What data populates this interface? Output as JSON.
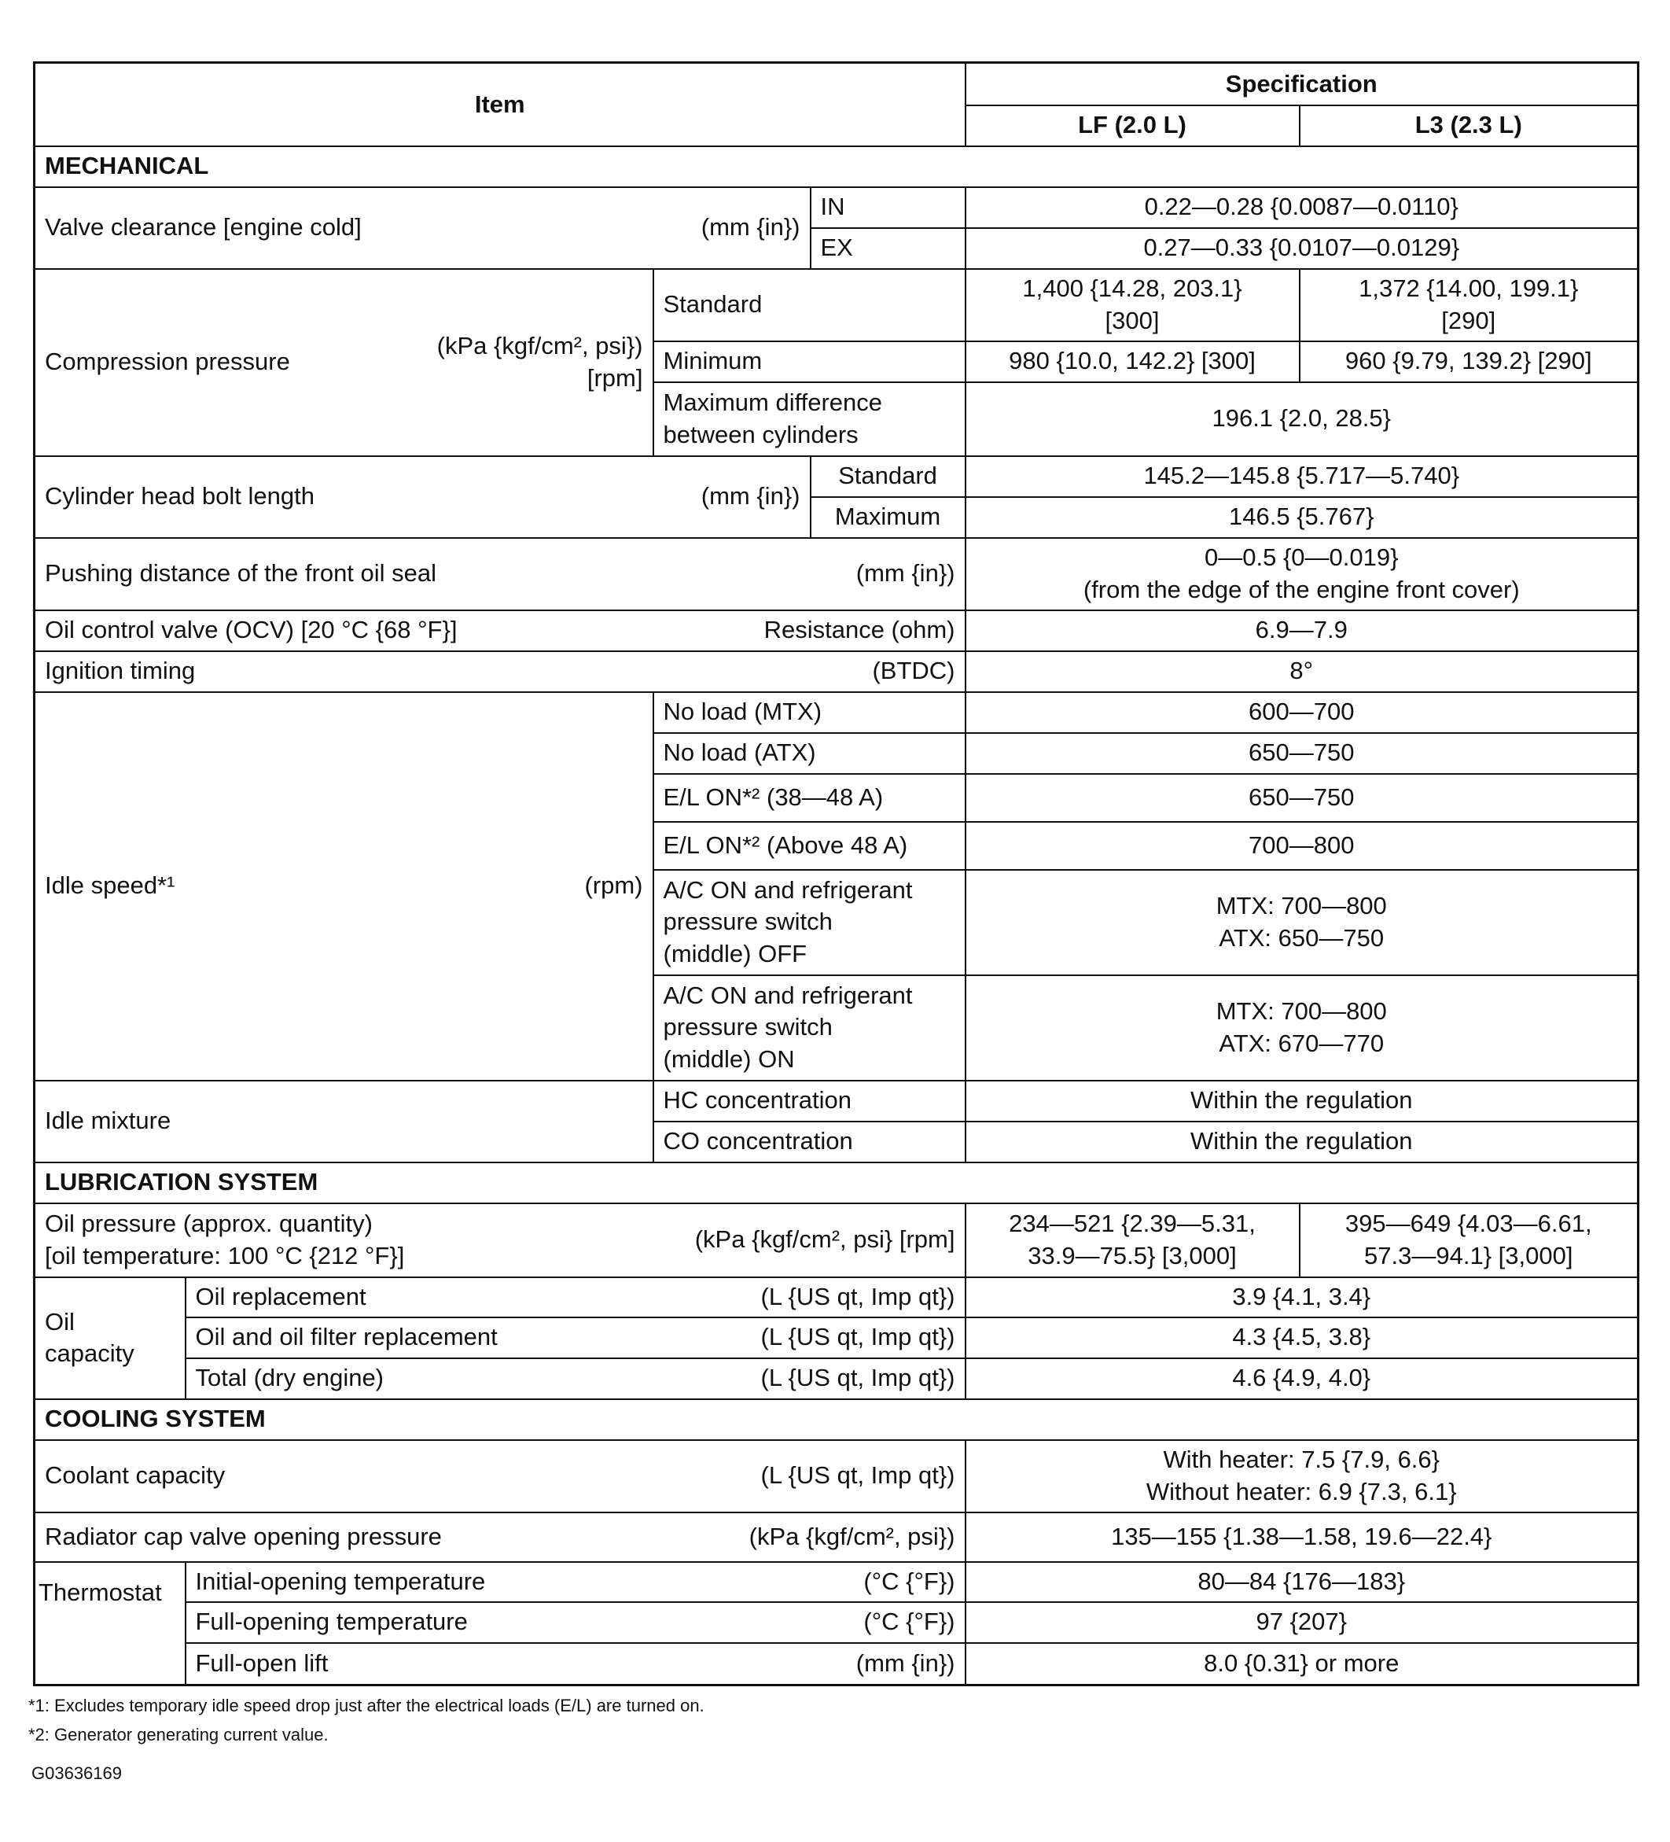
{
  "header": {
    "item": "Item",
    "specification": "Specification",
    "lf": "LF (2.0 L)",
    "l3": "L3 (2.3 L)"
  },
  "sections": {
    "mechanical": "MECHANICAL",
    "lubrication": "LUBRICATION SYSTEM",
    "cooling": "COOLING SYSTEM"
  },
  "mechanical": {
    "valve_clearance": {
      "label": "Valve clearance [engine cold]",
      "unit": "(mm {in})",
      "rows": [
        {
          "sub": "IN",
          "value": "0.22—0.28 {0.0087—0.0110}"
        },
        {
          "sub": "EX",
          "value": "0.27—0.33 {0.0107—0.0129}"
        }
      ]
    },
    "compression": {
      "label": "Compression pressure",
      "unit": "(kPa {kgf/cm², psi})\n[rpm]",
      "standard": {
        "sub": "Standard",
        "lf": "1,400 {14.28, 203.1}\n[300]",
        "l3": "1,372 {14.00, 199.1}\n[290]"
      },
      "minimum": {
        "sub": "Minimum",
        "lf": "980 {10.0, 142.2} [300]",
        "l3": "960 {9.79, 139.2} [290]"
      },
      "max_diff": {
        "sub": "Maximum difference\nbetween cylinders",
        "value": "196.1 {2.0, 28.5}"
      }
    },
    "head_bolt": {
      "label": "Cylinder head bolt length",
      "unit": "(mm {in})",
      "rows": [
        {
          "sub": "Standard",
          "value": "145.2—145.8 {5.717—5.740}"
        },
        {
          "sub": "Maximum",
          "value": "146.5 {5.767}"
        }
      ]
    },
    "oil_seal": {
      "label": "Pushing distance of the front oil seal",
      "unit": "(mm {in})",
      "value": "0—0.5 {0—0.019}\n(from the edge of the engine front cover)"
    },
    "ocv": {
      "label": "Oil control valve (OCV) [20 °C {68 °F}]",
      "unit": "Resistance (ohm)",
      "value": "6.9—7.9"
    },
    "ignition": {
      "label": "Ignition timing",
      "unit": "(BTDC)",
      "value": "8°"
    },
    "idle_speed": {
      "label": "Idle speed*¹",
      "unit": "(rpm)",
      "rows": [
        {
          "sub": "No load (MTX)",
          "value": "600—700"
        },
        {
          "sub": "No load (ATX)",
          "value": "650—750"
        },
        {
          "sub": "E/L ON*² (38—48 A)",
          "value": "650—750"
        },
        {
          "sub": "E/L ON*² (Above 48 A)",
          "value": "700—800"
        },
        {
          "sub": "A/C ON and refrigerant\npressure switch\n(middle) OFF",
          "value": "MTX: 700—800\nATX: 650—750"
        },
        {
          "sub": "A/C ON and refrigerant\npressure switch\n(middle) ON",
          "value": "MTX: 700—800\nATX: 670—770"
        }
      ]
    },
    "idle_mixture": {
      "label": "Idle mixture",
      "rows": [
        {
          "sub": "HC concentration",
          "value": "Within the regulation"
        },
        {
          "sub": "CO concentration",
          "value": "Within the regulation"
        }
      ]
    }
  },
  "lubrication": {
    "oil_pressure": {
      "label": "Oil pressure (approx. quantity)\n [oil temperature: 100 °C {212 °F}]",
      "unit": "(kPa {kgf/cm², psi} [rpm]",
      "lf": "234—521 {2.39—5.31,\n33.9—75.5} [3,000]",
      "l3": "395—649 {4.03—6.61,\n57.3—94.1} [3,000]"
    },
    "oil_capacity": {
      "label": "Oil\ncapacity",
      "rows": [
        {
          "sub": "Oil replacement",
          "unit": "(L {US qt, Imp qt})",
          "value": "3.9 {4.1, 3.4}"
        },
        {
          "sub": "Oil and oil filter replacement",
          "unit": "(L {US qt, Imp qt})",
          "value": "4.3 {4.5, 3.8}"
        },
        {
          "sub": "Total (dry engine)",
          "unit": "(L {US qt, Imp qt})",
          "value": "4.6 {4.9, 4.0}"
        }
      ]
    }
  },
  "cooling": {
    "coolant": {
      "label": "Coolant capacity",
      "unit": "(L {US qt, Imp qt})",
      "value": "With heater: 7.5 {7.9, 6.6}\nWithout heater: 6.9 {7.3, 6.1}"
    },
    "radiator_cap": {
      "label": "Radiator cap valve opening pressure",
      "unit": "(kPa {kgf/cm², psi})",
      "value": "135—155 {1.38—1.58, 19.6—22.4}"
    },
    "thermostat": {
      "label": "Thermostat",
      "rows": [
        {
          "sub": "Initial-opening temperature",
          "unit": "(°C {°F})",
          "value": "80—84 {176—183}"
        },
        {
          "sub": "Full-opening temperature",
          "unit": "(°C {°F})",
          "value": "97 {207}"
        },
        {
          "sub": "Full-open lift",
          "unit": "(mm {in})",
          "value": "8.0 {0.31} or more"
        }
      ]
    }
  },
  "footnotes": [
    "*1: Excludes temporary idle speed drop just after the electrical loads (E/L) are turned on.",
    "*2: Generator generating current value."
  ],
  "figure_code": "G03636169"
}
